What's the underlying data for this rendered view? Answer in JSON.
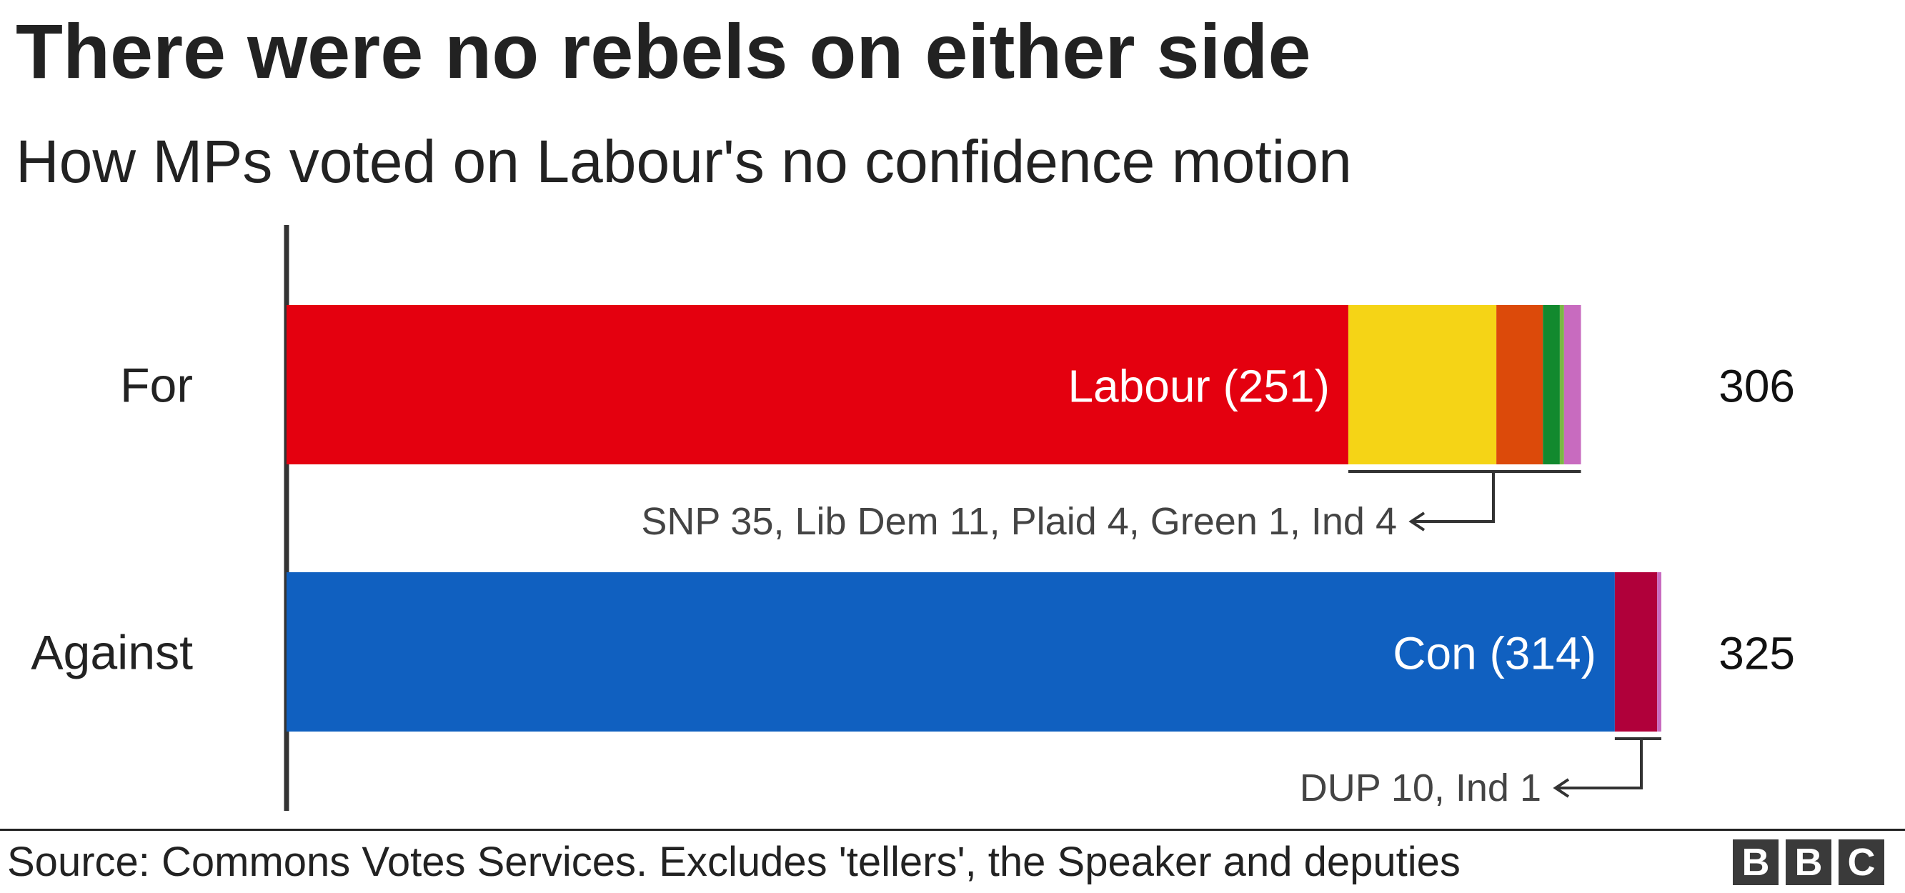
{
  "title": "There were no rebels on either side",
  "subtitle": "How MPs voted on Labour's no confidence motion",
  "source": "Source: Commons Votes Services. Excludes 'tellers', the Speaker and deputies",
  "logo": [
    "B",
    "B",
    "C"
  ],
  "chart_data": {
    "type": "bar",
    "orientation": "horizontal",
    "stacked": true,
    "categories": [
      "For",
      "Against"
    ],
    "series": [
      {
        "category": "For",
        "total_label": "306",
        "segments": [
          {
            "party": "Labour",
            "value": 251,
            "label": "Labour (251)",
            "color": "#e4000f"
          },
          {
            "party": "SNP",
            "value": 35,
            "color": "#f5d416"
          },
          {
            "party": "Lib Dem",
            "value": 11,
            "color": "#dc4a0a"
          },
          {
            "party": "Plaid",
            "value": 4,
            "color": "#12892e"
          },
          {
            "party": "Green",
            "value": 1,
            "color": "#7ab844"
          },
          {
            "party": "Ind",
            "value": 4,
            "color": "#c86bbf"
          }
        ],
        "annotation": "SNP 35, Lib Dem 11, Plaid 4, Green 1, Ind 4"
      },
      {
        "category": "Against",
        "total_label": "325",
        "segments": [
          {
            "party": "Con",
            "value": 314,
            "label": "Con (314)",
            "color": "#1060c0"
          },
          {
            "party": "DUP",
            "value": 10,
            "color": "#b0003a"
          },
          {
            "party": "Ind",
            "value": 1,
            "color": "#c86bbf"
          }
        ],
        "annotation": "DUP 10, Ind 1"
      }
    ],
    "grid": false,
    "legend": "none"
  }
}
